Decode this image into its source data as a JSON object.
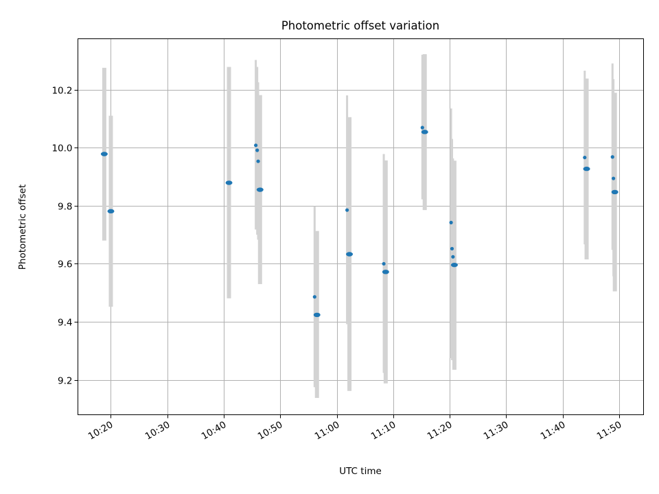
{
  "chart_data": {
    "type": "scatter",
    "title": "Photometric offset variation",
    "xlabel": "UTC time",
    "ylabel": "Photometric offset",
    "xlim": [
      "10:14:10",
      "11:54:20"
    ],
    "ylim": [
      9.08,
      10.375
    ],
    "x_ticks": [
      "10:20",
      "10:30",
      "10:40",
      "10:50",
      "11:00",
      "11:10",
      "11:20",
      "11:30",
      "11:40",
      "11:50"
    ],
    "y_ticks": [
      9.2,
      9.4,
      9.6,
      9.8,
      10.0,
      10.2
    ],
    "y_tick_labels": [
      "9.2",
      "9.4",
      "9.6",
      "9.8",
      "10.0",
      "10.2"
    ],
    "grid": true,
    "point_color": "#1f77b4",
    "errorbar_color": "#d3d3d3",
    "points": [
      {
        "time": "10:18:50",
        "y": 9.978,
        "ylow": 9.68,
        "yhigh": 10.275,
        "large": true
      },
      {
        "time": "10:20:00",
        "y": 9.781,
        "ylow": 9.452,
        "yhigh": 10.11,
        "large": true
      },
      {
        "time": "10:40:55",
        "y": 9.879,
        "ylow": 9.481,
        "yhigh": 10.278,
        "large": true
      },
      {
        "time": "10:45:40",
        "y": 10.008,
        "ylow": 9.718,
        "yhigh": 10.302,
        "large": false
      },
      {
        "time": "10:45:55",
        "y": 9.991,
        "ylow": 9.7,
        "yhigh": 10.278,
        "large": false
      },
      {
        "time": "10:46:05",
        "y": 9.953,
        "ylow": 9.683,
        "yhigh": 10.225,
        "large": false
      },
      {
        "time": "10:46:25",
        "y": 9.855,
        "ylow": 9.53,
        "yhigh": 10.181,
        "large": true
      },
      {
        "time": "10:56:05",
        "y": 9.486,
        "ylow": 9.175,
        "yhigh": 9.798,
        "large": false
      },
      {
        "time": "10:56:30",
        "y": 9.424,
        "ylow": 9.138,
        "yhigh": 9.713,
        "large": true
      },
      {
        "time": "11:01:50",
        "y": 9.785,
        "ylow": 9.392,
        "yhigh": 10.18,
        "large": false
      },
      {
        "time": "11:02:15",
        "y": 9.633,
        "ylow": 9.162,
        "yhigh": 10.105,
        "large": true
      },
      {
        "time": "11:08:20",
        "y": 9.6,
        "ylow": 9.224,
        "yhigh": 9.978,
        "large": false
      },
      {
        "time": "11:08:40",
        "y": 9.572,
        "ylow": 9.188,
        "yhigh": 9.956,
        "large": true
      },
      {
        "time": "11:15:10",
        "y": 10.069,
        "ylow": 9.822,
        "yhigh": 10.32,
        "large": false
      },
      {
        "time": "11:15:35",
        "y": 10.054,
        "ylow": 9.785,
        "yhigh": 10.322,
        "large": true
      },
      {
        "time": "11:20:15",
        "y": 9.742,
        "ylow": 9.275,
        "yhigh": 10.135,
        "large": false
      },
      {
        "time": "11:20:25",
        "y": 9.652,
        "ylow": 9.268,
        "yhigh": 10.03,
        "large": false
      },
      {
        "time": "11:20:35",
        "y": 9.624,
        "ylow": 9.285,
        "yhigh": 9.963,
        "large": false
      },
      {
        "time": "11:20:50",
        "y": 9.596,
        "ylow": 9.235,
        "yhigh": 9.955,
        "large": true
      },
      {
        "time": "11:43:55",
        "y": 9.966,
        "ylow": 9.667,
        "yhigh": 10.265,
        "large": false
      },
      {
        "time": "11:44:15",
        "y": 9.927,
        "ylow": 9.615,
        "yhigh": 10.238,
        "large": true
      },
      {
        "time": "11:48:50",
        "y": 9.968,
        "ylow": 9.648,
        "yhigh": 10.29,
        "large": false
      },
      {
        "time": "11:49:00",
        "y": 9.894,
        "ylow": 9.557,
        "yhigh": 10.236,
        "large": false
      },
      {
        "time": "11:49:15",
        "y": 9.847,
        "ylow": 9.505,
        "yhigh": 10.189,
        "large": true
      }
    ]
  }
}
